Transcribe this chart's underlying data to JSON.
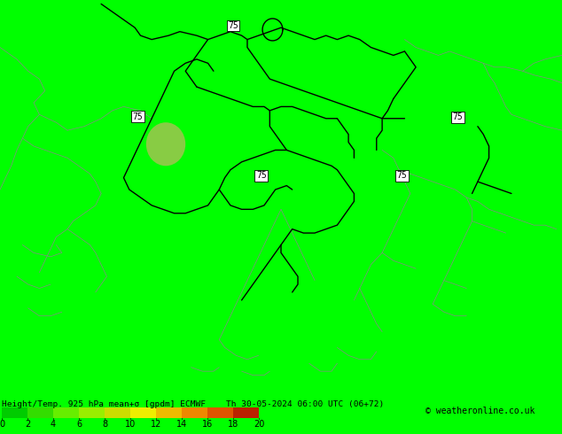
{
  "background_color": "#00ff00",
  "fig_width": 6.34,
  "fig_height": 4.9,
  "dpi": 100,
  "map_bg": "#00ff00",
  "bottom_bg": "#00ff00",
  "colorbar_values": [
    0,
    2,
    4,
    6,
    8,
    10,
    12,
    14,
    16,
    18,
    20
  ],
  "colorbar_colors": [
    "#00cc00",
    "#33dd00",
    "#66ee00",
    "#99ee00",
    "#ccdd00",
    "#eeee00",
    "#eebb00",
    "#ee8800",
    "#dd5500",
    "#bb2200",
    "#880000"
  ],
  "bottom_text": "Height/Temp. 925 hPa mean+σ [gpdm] ECMWF    Th 30-05-2024 06:00 UTC (06+72)",
  "copyright": "© weatheronline.co.uk",
  "contour_label": "75",
  "blob_color": "#88cc44",
  "thick_line_color": "#000000",
  "thin_line_color": "#888888",
  "thick_lw": 1.0,
  "thin_lw": 0.5
}
